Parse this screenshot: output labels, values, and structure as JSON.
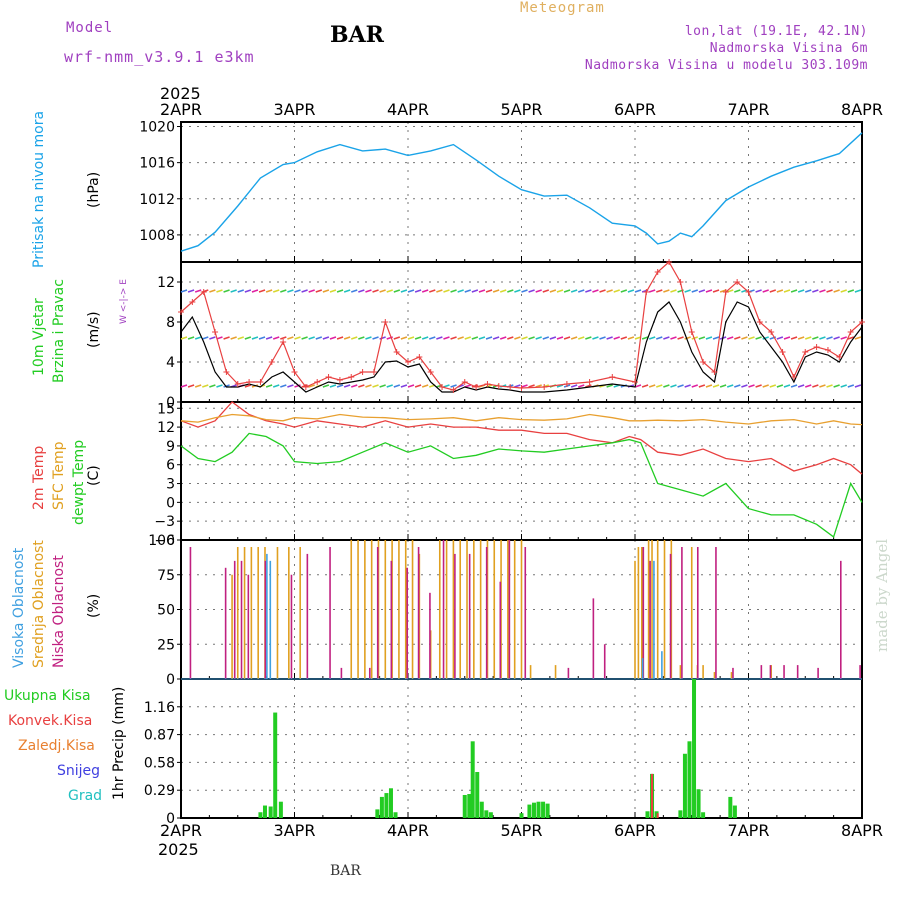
{
  "header": {
    "meteogram_label": "Meteogram",
    "model_label": "Model",
    "model_name": "wrf-nmm_v3.9.1 e3km",
    "station": "BAR",
    "lonlat": "lon,lat (19.1E, 42.1N)",
    "altitude": "Nadmorska Visina 6m",
    "model_altitude": "Nadmorska Visina u modelu 303.109m",
    "footer_station": "BAR",
    "credit": "made by Angel"
  },
  "colors": {
    "pressure": "#1aa3e8",
    "temp2m": "#e84040",
    "sfc": "#e8a030",
    "dewpt": "#22cc22",
    "high_cloud": "#40a0e0",
    "mid_cloud": "#e0a020",
    "low_cloud": "#c02080",
    "total_precip": "#22cc22",
    "conv_precip": "#e84040",
    "freezing": "#e88030",
    "snow": "#4040e0",
    "hail": "#20c0c0",
    "wind_speed": "#000000",
    "wind_gust": "#e84040",
    "purple_text": "#a040c0",
    "orange_text": "#e0b060"
  },
  "time_axis": {
    "start_year": "2025",
    "days": [
      "2APR",
      "3APR",
      "4APR",
      "5APR",
      "6APR",
      "7APR",
      "8APR"
    ]
  },
  "chart_data": [
    {
      "type": "line",
      "name": "pressure",
      "ylabel_main": "Pritisak na nivou mora",
      "unit": "(hPa)",
      "ylim": [
        1005,
        1020.5
      ],
      "yticks": [
        1008,
        1012,
        1016,
        1020
      ],
      "x_days": [
        0,
        0.15,
        0.3,
        0.5,
        0.7,
        0.9,
        1.0,
        1.2,
        1.4,
        1.6,
        1.8,
        2.0,
        2.2,
        2.4,
        2.6,
        2.8,
        3.0,
        3.2,
        3.4,
        3.6,
        3.8,
        4.0,
        4.1,
        4.2,
        4.3,
        4.4,
        4.5,
        4.6,
        4.8,
        5.0,
        5.2,
        5.4,
        5.6,
        5.8,
        6.0
      ],
      "values": [
        1006.2,
        1006.8,
        1008.3,
        1011.2,
        1014.3,
        1015.8,
        1016.0,
        1017.2,
        1018.0,
        1017.3,
        1017.5,
        1016.8,
        1017.3,
        1018.0,
        1016.3,
        1014.5,
        1013.0,
        1012.3,
        1012.4,
        1011.0,
        1009.3,
        1009.0,
        1008.2,
        1007.0,
        1007.3,
        1008.2,
        1007.8,
        1009.0,
        1011.8,
        1013.3,
        1014.5,
        1015.5,
        1016.2,
        1017.0,
        1019.3
      ]
    },
    {
      "type": "line",
      "name": "wind",
      "ylabel_main": "10m Vjetar",
      "ylabel_sub": "Brzina i Pravac",
      "unit": "(m/s)",
      "compass": "W <-|-> E",
      "ylim": [
        0,
        14
      ],
      "yticks": [
        0,
        4,
        8,
        12
      ],
      "x_days": [
        0,
        0.1,
        0.2,
        0.3,
        0.4,
        0.5,
        0.6,
        0.7,
        0.8,
        0.9,
        1.0,
        1.1,
        1.2,
        1.3,
        1.4,
        1.5,
        1.6,
        1.7,
        1.8,
        1.9,
        2.0,
        2.1,
        2.2,
        2.3,
        2.4,
        2.5,
        2.6,
        2.7,
        2.8,
        2.9,
        3.0,
        3.2,
        3.4,
        3.6,
        3.8,
        4.0,
        4.1,
        4.2,
        4.3,
        4.4,
        4.5,
        4.6,
        4.7,
        4.8,
        4.9,
        5.0,
        5.1,
        5.2,
        5.3,
        5.4,
        5.5,
        5.6,
        5.7,
        5.8,
        5.9,
        6.0
      ],
      "series": [
        {
          "name": "speed",
          "values": [
            7,
            8.5,
            6,
            3,
            1.5,
            1.5,
            1.8,
            1.5,
            2.5,
            3,
            2,
            1,
            1.5,
            2,
            1.8,
            2,
            2.2,
            2.5,
            4,
            4.1,
            3.5,
            3.8,
            2,
            1,
            1,
            1.5,
            1.2,
            1.5,
            1.3,
            1.2,
            1.0,
            1.0,
            1.2,
            1.5,
            1.8,
            1.5,
            6,
            9,
            10,
            8,
            5,
            3,
            2,
            8,
            10,
            9.5,
            7,
            5.5,
            4,
            2,
            4.5,
            5,
            4.7,
            4,
            6,
            7.5
          ]
        },
        {
          "name": "gust",
          "values": [
            9,
            10,
            11,
            7,
            3,
            1.8,
            2,
            2,
            4,
            6,
            3,
            1.5,
            2,
            2.5,
            2.2,
            2.5,
            3,
            3,
            8,
            5,
            4,
            4.5,
            3,
            1.5,
            1.2,
            2,
            1.5,
            1.8,
            1.6,
            1.5,
            1.4,
            1.5,
            1.8,
            2,
            2.5,
            2.0,
            11,
            13,
            14,
            12,
            7,
            4,
            3,
            11,
            12,
            11,
            8,
            7,
            5,
            2.5,
            5,
            5.5,
            5.2,
            4.5,
            7,
            8
          ]
        }
      ]
    },
    {
      "type": "line",
      "name": "temperature",
      "ylabel_a": "2m Temp",
      "ylabel_b": "SFC Temp",
      "ylabel_c": "dewpt Temp",
      "unit": "(C)",
      "ylim": [
        -6,
        16
      ],
      "yticks": [
        -6,
        -3,
        0,
        3,
        6,
        9,
        12,
        15
      ],
      "x_days": [
        0,
        0.15,
        0.3,
        0.45,
        0.6,
        0.75,
        0.9,
        1.0,
        1.2,
        1.4,
        1.6,
        1.8,
        2.0,
        2.2,
        2.4,
        2.6,
        2.8,
        3.0,
        3.2,
        3.4,
        3.6,
        3.8,
        3.95,
        4.05,
        4.2,
        4.4,
        4.6,
        4.8,
        5.0,
        5.2,
        5.4,
        5.6,
        5.75,
        5.9,
        6.0
      ],
      "series": [
        {
          "name": "2m",
          "values": [
            13,
            12,
            13,
            16,
            14,
            13,
            12.5,
            12,
            13,
            12.5,
            12,
            13,
            12,
            12.5,
            12,
            12,
            11.5,
            11.5,
            11,
            11,
            10,
            9.5,
            10.5,
            10,
            8,
            7.5,
            8.5,
            7,
            6.5,
            7,
            5,
            6,
            7,
            6,
            4.5
          ]
        },
        {
          "name": "sfc",
          "values": [
            13,
            12.8,
            13.5,
            14,
            13.8,
            13.2,
            13,
            13.5,
            13.3,
            14,
            13.6,
            13.5,
            13.2,
            13.3,
            13.5,
            13,
            13.5,
            13.2,
            13.1,
            13.3,
            14,
            13.5,
            13,
            13,
            13.1,
            13,
            13.2,
            12.8,
            12.5,
            13,
            13.2,
            12.5,
            13,
            12.5,
            12.4
          ]
        },
        {
          "name": "dewpt",
          "values": [
            9,
            7,
            6.5,
            8,
            11,
            10.5,
            9,
            6.5,
            6.2,
            6.5,
            8,
            9.5,
            8,
            9,
            7,
            7.5,
            8.5,
            8.2,
            8,
            8.5,
            9,
            9.5,
            10,
            9.5,
            3,
            2,
            1,
            3,
            -1,
            -2,
            -2,
            -3.5,
            -5.5,
            3,
            0
          ]
        }
      ]
    },
    {
      "type": "bar",
      "name": "cloud cover",
      "ylabel_a": "Visoka Oblacnost",
      "ylabel_b": "Srednja Oblacnost",
      "ylabel_c": "Niska Oblacnost",
      "unit": "(%)",
      "ylim": [
        0,
        100
      ],
      "yticks": [
        0,
        25,
        50,
        75,
        100
      ],
      "high_cloud": [
        [
          0.77,
          90
        ],
        [
          0.8,
          85
        ],
        [
          4.08,
          15
        ],
        [
          4.18,
          85
        ],
        [
          4.25,
          20
        ]
      ],
      "mid_cloud": [
        [
          0.45,
          75
        ],
        [
          0.5,
          95
        ],
        [
          0.56,
          95
        ],
        [
          0.62,
          95
        ],
        [
          0.68,
          95
        ],
        [
          0.74,
          95
        ],
        [
          0.85,
          95
        ],
        [
          0.95,
          95
        ],
        [
          1.05,
          95
        ],
        [
          1.5,
          100
        ],
        [
          1.56,
          100
        ],
        [
          1.62,
          100
        ],
        [
          1.68,
          100
        ],
        [
          1.74,
          100
        ],
        [
          1.8,
          100
        ],
        [
          1.86,
          100
        ],
        [
          1.92,
          100
        ],
        [
          1.98,
          100
        ],
        [
          2.04,
          100
        ],
        [
          2.1,
          90
        ],
        [
          2.2,
          35
        ],
        [
          2.28,
          100
        ],
        [
          2.34,
          100
        ],
        [
          2.4,
          100
        ],
        [
          2.46,
          100
        ],
        [
          2.52,
          100
        ],
        [
          2.58,
          100
        ],
        [
          2.64,
          100
        ],
        [
          2.7,
          100
        ],
        [
          2.76,
          100
        ],
        [
          2.82,
          100
        ],
        [
          2.88,
          100
        ],
        [
          2.94,
          100
        ],
        [
          3.0,
          100
        ],
        [
          3.08,
          10
        ],
        [
          3.3,
          10
        ],
        [
          4.0,
          85
        ],
        [
          4.03,
          95
        ],
        [
          4.06,
          95
        ],
        [
          4.12,
          100
        ],
        [
          4.15,
          100
        ],
        [
          4.2,
          100
        ],
        [
          4.26,
          100
        ],
        [
          4.32,
          100
        ],
        [
          4.4,
          10
        ],
        [
          4.5,
          95
        ],
        [
          4.55,
          10
        ],
        [
          4.6,
          10
        ],
        [
          4.7,
          5
        ],
        [
          4.85,
          5
        ],
        [
          5.2,
          10
        ]
      ],
      "low_cloud": [
        [
          0.07,
          95
        ],
        [
          0.38,
          80
        ],
        [
          0.46,
          85
        ],
        [
          0.52,
          85
        ],
        [
          0.58,
          75
        ],
        [
          0.73,
          85
        ],
        [
          0.96,
          75
        ],
        [
          1.1,
          90
        ],
        [
          1.3,
          95
        ],
        [
          1.4,
          8
        ],
        [
          1.65,
          8
        ],
        [
          1.72,
          95
        ],
        [
          1.84,
          85
        ],
        [
          1.98,
          80
        ],
        [
          2.08,
          95
        ],
        [
          2.18,
          62
        ],
        [
          2.3,
          100
        ],
        [
          2.4,
          90
        ],
        [
          2.53,
          90
        ],
        [
          2.68,
          95
        ],
        [
          2.8,
          70
        ],
        [
          2.88,
          100
        ],
        [
          3.02,
          95
        ],
        [
          3.4,
          8
        ],
        [
          3.62,
          58
        ],
        [
          3.72,
          25
        ],
        [
          4.06,
          95
        ],
        [
          4.12,
          85
        ],
        [
          4.3,
          90
        ],
        [
          4.4,
          95
        ],
        [
          4.54,
          95
        ],
        [
          4.7,
          95
        ],
        [
          4.85,
          8
        ],
        [
          5.1,
          10
        ],
        [
          5.18,
          10
        ],
        [
          5.3,
          10
        ],
        [
          5.42,
          10
        ],
        [
          5.6,
          8
        ],
        [
          5.8,
          85
        ],
        [
          5.97,
          10
        ]
      ]
    },
    {
      "type": "bar",
      "name": "precipitation",
      "ylabel_total": "Ukupna Kisa",
      "ylabel_conv": "Konvek.Kisa",
      "ylabel_freezing": "Zaledj.Kisa",
      "ylabel_snow": "Snijeg",
      "ylabel_hail": "Grad",
      "ylabel_unit": "1hr Precip (mm)",
      "ylim": [
        0,
        1.45
      ],
      "yticks": [
        0,
        0.29,
        0.58,
        0.87,
        1.16
      ],
      "ytick_labels": [
        "0",
        "0.29",
        "0.58",
        "0.87",
        "1.16"
      ],
      "total": [
        [
          0.7,
          0.06
        ],
        [
          0.74,
          0.13
        ],
        [
          0.79,
          0.12
        ],
        [
          0.83,
          1.1
        ],
        [
          0.88,
          0.17
        ],
        [
          1.73,
          0.09
        ],
        [
          1.77,
          0.22
        ],
        [
          1.81,
          0.26
        ],
        [
          1.85,
          0.31
        ],
        [
          1.89,
          0.06
        ],
        [
          2.5,
          0.24
        ],
        [
          2.54,
          0.25
        ],
        [
          2.57,
          0.8
        ],
        [
          2.61,
          0.48
        ],
        [
          2.65,
          0.17
        ],
        [
          2.69,
          0.08
        ],
        [
          2.73,
          0.06
        ],
        [
          3.0,
          0.05
        ],
        [
          3.07,
          0.14
        ],
        [
          3.11,
          0.16
        ],
        [
          3.15,
          0.17
        ],
        [
          3.19,
          0.17
        ],
        [
          3.23,
          0.15
        ],
        [
          4.11,
          0.07
        ],
        [
          4.15,
          0.46
        ],
        [
          4.19,
          0.07
        ],
        [
          4.4,
          0.08
        ],
        [
          4.44,
          0.67
        ],
        [
          4.48,
          0.8
        ],
        [
          4.52,
          1.45
        ],
        [
          4.56,
          0.3
        ],
        [
          4.6,
          0.06
        ],
        [
          4.84,
          0.22
        ],
        [
          4.88,
          0.13
        ]
      ],
      "conv": [
        [
          4.15,
          0.46
        ],
        [
          4.2,
          0.05
        ]
      ]
    }
  ]
}
